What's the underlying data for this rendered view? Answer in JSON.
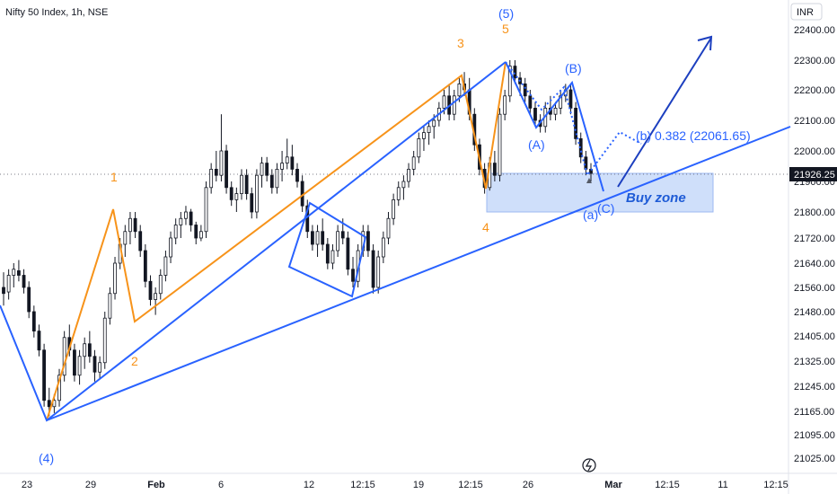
{
  "chart_data": {
    "type": "candlestick",
    "title": "Nifty 50 Index, 1h, NSE",
    "currency": "INR",
    "last_price": "21926.25",
    "y_ticks": [
      "22400.00",
      "22300.00",
      "22200.00",
      "22100.00",
      "22000.00",
      "21900.00",
      "21800.00",
      "21720.00",
      "21640.00",
      "21560.00",
      "21480.00",
      "21405.00",
      "21325.00",
      "21245.00",
      "21165.00",
      "21095.00",
      "21025.00"
    ],
    "x_ticks": [
      "23",
      "29",
      "Feb",
      "6",
      "12",
      "12:15",
      "19",
      "12:15",
      "26",
      "Mar",
      "12:15",
      "11",
      "12:15"
    ],
    "colors": {
      "candle": "#131722",
      "orange": "#f7931a",
      "blue": "#2962ff",
      "navy": "#1c3fbf",
      "zone_fill": "#cfdffa",
      "zone_edge": "#9db9f2"
    },
    "annotations": {
      "orange_waves": [
        "1",
        "2",
        "3",
        "4",
        "5"
      ],
      "blue_waves": [
        "(4)",
        "(5)",
        "(A)",
        "(B)",
        "(C)",
        "(a)"
      ],
      "fib_label": "(b) 0.382 (22061.65)",
      "zone_label": "Buy zone"
    },
    "ohlc_values": [
      [
        21560,
        21610,
        21500,
        21540
      ],
      [
        21545,
        21620,
        21520,
        21600
      ],
      [
        21600,
        21640,
        21560,
        21620
      ],
      [
        21615,
        21650,
        21580,
        21600
      ],
      [
        21600,
        21620,
        21540,
        21560
      ],
      [
        21560,
        21580,
        21460,
        21480
      ],
      [
        21480,
        21500,
        21400,
        21420
      ],
      [
        21420,
        21440,
        21340,
        21360
      ],
      [
        21360,
        21380,
        21180,
        21200
      ],
      [
        21200,
        21240,
        21150,
        21180
      ],
      [
        21180,
        21220,
        21160,
        21200
      ],
      [
        21200,
        21300,
        21180,
        21280
      ],
      [
        21280,
        21420,
        21260,
        21400
      ],
      [
        21400,
        21440,
        21340,
        21360
      ],
      [
        21360,
        21380,
        21260,
        21280
      ],
      [
        21280,
        21360,
        21250,
        21340
      ],
      [
        21340,
        21400,
        21300,
        21380
      ],
      [
        21380,
        21420,
        21320,
        21340
      ],
      [
        21340,
        21360,
        21260,
        21290
      ],
      [
        21290,
        21340,
        21270,
        21320
      ],
      [
        21320,
        21480,
        21300,
        21460
      ],
      [
        21460,
        21560,
        21440,
        21540
      ],
      [
        21540,
        21660,
        21520,
        21640
      ],
      [
        21640,
        21720,
        21620,
        21700
      ],
      [
        21700,
        21760,
        21660,
        21740
      ],
      [
        21740,
        21800,
        21700,
        21780
      ],
      [
        21780,
        21800,
        21720,
        21740
      ],
      [
        21740,
        21760,
        21660,
        21680
      ],
      [
        21680,
        21700,
        21560,
        21580
      ],
      [
        21580,
        21600,
        21500,
        21520
      ],
      [
        21520,
        21560,
        21470,
        21540
      ],
      [
        21540,
        21620,
        21520,
        21600
      ],
      [
        21600,
        21680,
        21580,
        21660
      ],
      [
        21660,
        21740,
        21640,
        21720
      ],
      [
        21720,
        21780,
        21700,
        21760
      ],
      [
        21760,
        21800,
        21720,
        21780
      ],
      [
        21780,
        21820,
        21760,
        21800
      ],
      [
        21800,
        21810,
        21740,
        21760
      ],
      [
        21760,
        21770,
        21700,
        21720
      ],
      [
        21720,
        21760,
        21710,
        21740
      ],
      [
        21740,
        21900,
        21720,
        21880
      ],
      [
        21880,
        21960,
        21860,
        21940
      ],
      [
        21940,
        22000,
        21900,
        21920
      ],
      [
        21920,
        22120,
        21900,
        22000
      ],
      [
        22000,
        22020,
        21860,
        21880
      ],
      [
        21880,
        21900,
        21820,
        21840
      ],
      [
        21840,
        21880,
        21800,
        21860
      ],
      [
        21860,
        21940,
        21840,
        21920
      ],
      [
        21920,
        21940,
        21840,
        21860
      ],
      [
        21860,
        21880,
        21780,
        21800
      ],
      [
        21800,
        21940,
        21780,
        21920
      ],
      [
        21920,
        21980,
        21880,
        21960
      ],
      [
        21960,
        21980,
        21900,
        21920
      ],
      [
        21920,
        21940,
        21860,
        21880
      ],
      [
        21880,
        21960,
        21860,
        21940
      ],
      [
        21940,
        22000,
        21900,
        21960
      ],
      [
        21960,
        22040,
        21940,
        21980
      ],
      [
        21980,
        22020,
        21920,
        21940
      ],
      [
        21940,
        21960,
        21880,
        21900
      ],
      [
        21900,
        21920,
        21800,
        21820
      ],
      [
        21820,
        21840,
        21720,
        21740
      ],
      [
        21740,
        21760,
        21680,
        21700
      ],
      [
        21700,
        21760,
        21660,
        21740
      ],
      [
        21740,
        21780,
        21680,
        21700
      ],
      [
        21700,
        21720,
        21620,
        21640
      ],
      [
        21640,
        21700,
        21620,
        21680
      ],
      [
        21680,
        21760,
        21660,
        21740
      ],
      [
        21740,
        21780,
        21700,
        21720
      ],
      [
        21720,
        21740,
        21600,
        21620
      ],
      [
        21620,
        21660,
        21560,
        21580
      ],
      [
        21580,
        21700,
        21560,
        21680
      ],
      [
        21680,
        21760,
        21660,
        21740
      ],
      [
        21740,
        21760,
        21660,
        21680
      ],
      [
        21680,
        21700,
        21540,
        21560
      ],
      [
        21560,
        21680,
        21540,
        21660
      ],
      [
        21660,
        21740,
        21640,
        21720
      ],
      [
        21720,
        21800,
        21700,
        21780
      ],
      [
        21780,
        21860,
        21760,
        21840
      ],
      [
        21840,
        21900,
        21820,
        21880
      ],
      [
        21880,
        21920,
        21840,
        21900
      ],
      [
        21900,
        21960,
        21880,
        21940
      ],
      [
        21940,
        22000,
        21920,
        21980
      ],
      [
        21980,
        22060,
        21960,
        22040
      ],
      [
        22040,
        22080,
        22000,
        22060
      ],
      [
        22060,
        22100,
        22020,
        22080
      ],
      [
        22080,
        22120,
        22040,
        22100
      ],
      [
        22100,
        22160,
        22080,
        22140
      ],
      [
        22140,
        22200,
        22120,
        22180
      ],
      [
        22180,
        22220,
        22100,
        22120
      ],
      [
        22120,
        22200,
        22100,
        22180
      ],
      [
        22180,
        22240,
        22160,
        22220
      ],
      [
        22220,
        22260,
        22180,
        22200
      ],
      [
        22200,
        22240,
        22100,
        22120
      ],
      [
        22120,
        22140,
        22000,
        22020
      ],
      [
        22020,
        22040,
        21920,
        21940
      ],
      [
        21940,
        21960,
        21860,
        21880
      ],
      [
        21880,
        21980,
        21870,
        21960
      ],
      [
        21960,
        22000,
        21900,
        21920
      ],
      [
        21920,
        22140,
        21900,
        22120
      ],
      [
        22120,
        22200,
        22100,
        22180
      ],
      [
        22180,
        22300,
        22160,
        22280
      ],
      [
        22280,
        22300,
        22220,
        22240
      ],
      [
        22240,
        22260,
        22180,
        22220
      ],
      [
        22220,
        22240,
        22160,
        22180
      ],
      [
        22180,
        22200,
        22120,
        22140
      ],
      [
        22140,
        22160,
        22080,
        22100
      ],
      [
        22100,
        22120,
        22060,
        22080
      ],
      [
        22080,
        22160,
        22060,
        22140
      ],
      [
        22140,
        22180,
        22100,
        22120
      ],
      [
        22120,
        22160,
        22100,
        22140
      ],
      [
        22140,
        22200,
        22120,
        22180
      ],
      [
        22180,
        22220,
        22160,
        22200
      ],
      [
        22200,
        22220,
        22120,
        22140
      ],
      [
        22140,
        22160,
        22020,
        22040
      ],
      [
        22040,
        22060,
        21960,
        21980
      ],
      [
        21980,
        22000,
        21920,
        21940
      ],
      [
        21940,
        21960,
        21900,
        21926.25
      ]
    ]
  }
}
